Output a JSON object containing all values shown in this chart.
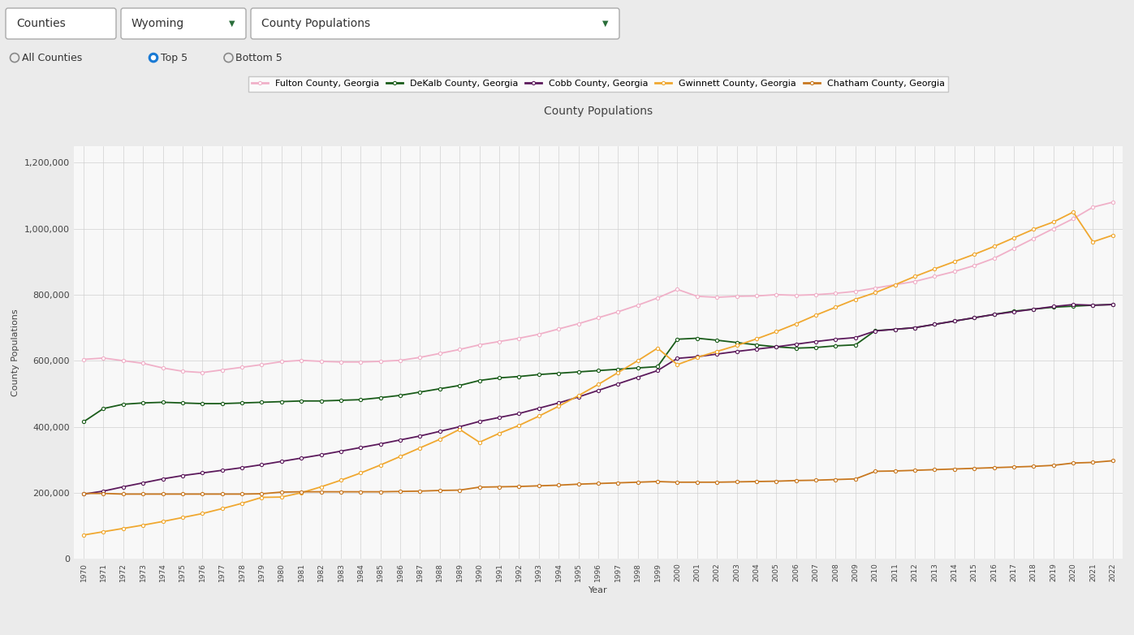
{
  "title": "County Populations",
  "xlabel": "Year",
  "ylabel": "County Populations",
  "legend_entries": [
    "Fulton County, Georgia",
    "DeKalb County, Georgia",
    "Cobb County, Georgia",
    "Gwinnett County, Georgia",
    "Chatham County, Georgia"
  ],
  "colors": [
    "#f0b0c8",
    "#1a5c1a",
    "#5c1a5c",
    "#f0a830",
    "#c87820"
  ],
  "years": [
    1970,
    1971,
    1972,
    1973,
    1974,
    1975,
    1976,
    1977,
    1978,
    1979,
    1980,
    1981,
    1982,
    1983,
    1984,
    1985,
    1986,
    1987,
    1988,
    1989,
    1990,
    1991,
    1992,
    1993,
    1994,
    1995,
    1996,
    1997,
    1998,
    1999,
    2000,
    2001,
    2002,
    2003,
    2004,
    2005,
    2006,
    2007,
    2008,
    2009,
    2010,
    2011,
    2012,
    2013,
    2014,
    2015,
    2016,
    2017,
    2018,
    2019,
    2020,
    2021,
    2022
  ],
  "fulton": [
    604000,
    608000,
    600000,
    592000,
    578000,
    568000,
    564000,
    572000,
    580000,
    588000,
    597000,
    601000,
    598000,
    596000,
    596000,
    598000,
    601000,
    610000,
    622000,
    634000,
    648000,
    658000,
    668000,
    680000,
    696000,
    712000,
    730000,
    748000,
    768000,
    790000,
    816000,
    795000,
    792000,
    795000,
    796000,
    800000,
    798000,
    800000,
    804000,
    810000,
    820000,
    830000,
    840000,
    855000,
    870000,
    888000,
    910000,
    940000,
    970000,
    1000000,
    1030000,
    1065000,
    1080000
  ],
  "dekalb": [
    415000,
    455000,
    468000,
    472000,
    474000,
    472000,
    470000,
    470000,
    472000,
    474000,
    476000,
    478000,
    478000,
    480000,
    482000,
    488000,
    495000,
    505000,
    515000,
    525000,
    540000,
    548000,
    552000,
    558000,
    562000,
    566000,
    570000,
    574000,
    578000,
    582000,
    665000,
    668000,
    662000,
    655000,
    648000,
    642000,
    638000,
    640000,
    645000,
    648000,
    691000,
    695000,
    700000,
    710000,
    720000,
    730000,
    740000,
    750000,
    756000,
    762000,
    765000,
    768000,
    770000
  ],
  "cobb": [
    196000,
    205000,
    218000,
    230000,
    242000,
    252000,
    260000,
    268000,
    276000,
    285000,
    295000,
    305000,
    315000,
    326000,
    337000,
    348000,
    360000,
    372000,
    386000,
    400000,
    416000,
    428000,
    440000,
    456000,
    472000,
    490000,
    510000,
    530000,
    550000,
    570000,
    607000,
    612000,
    620000,
    628000,
    635000,
    642000,
    650000,
    658000,
    665000,
    670000,
    690000,
    695000,
    700000,
    710000,
    720000,
    730000,
    740000,
    748000,
    756000,
    764000,
    770000,
    768000,
    770000
  ],
  "gwinnett": [
    72000,
    82000,
    92000,
    102000,
    113000,
    125000,
    137000,
    152000,
    168000,
    186000,
    187000,
    200000,
    218000,
    238000,
    260000,
    284000,
    310000,
    336000,
    362000,
    392000,
    353000,
    380000,
    404000,
    432000,
    462000,
    494000,
    528000,
    564000,
    600000,
    638000,
    588000,
    610000,
    628000,
    646000,
    666000,
    688000,
    712000,
    738000,
    762000,
    786000,
    806000,
    830000,
    855000,
    878000,
    900000,
    922000,
    946000,
    972000,
    998000,
    1020000,
    1050000,
    960000,
    980000
  ],
  "chatham": [
    198000,
    198000,
    196000,
    196000,
    196000,
    196000,
    196000,
    196000,
    196000,
    197000,
    202000,
    203000,
    203000,
    203000,
    203000,
    203000,
    204000,
    205000,
    207000,
    208000,
    217000,
    218000,
    219000,
    221000,
    223000,
    226000,
    228000,
    230000,
    232000,
    234000,
    232000,
    232000,
    232000,
    233000,
    234000,
    235000,
    237000,
    238000,
    240000,
    242000,
    265000,
    266000,
    268000,
    270000,
    272000,
    274000,
    276000,
    278000,
    280000,
    283000,
    290000,
    292000,
    297000
  ],
  "ylim": [
    0,
    1250000
  ],
  "yticks": [
    0,
    200000,
    400000,
    600000,
    800000,
    1000000,
    1200000
  ],
  "background_color": "#ebebeb",
  "plot_background": "#f8f8f8",
  "grid_color": "#d0d0d0",
  "title_fontsize": 10,
  "axis_label_fontsize": 8,
  "tick_fontsize": 8,
  "legend_fontsize": 8,
  "ui_bg": "#e8e8e8",
  "dropdown1_text": "Counties",
  "dropdown2_text": "Wyoming",
  "dropdown3_text": "County Populations",
  "radio_labels": [
    "All Counties",
    "Top 5",
    "Bottom 5"
  ],
  "radio_selected": 1
}
